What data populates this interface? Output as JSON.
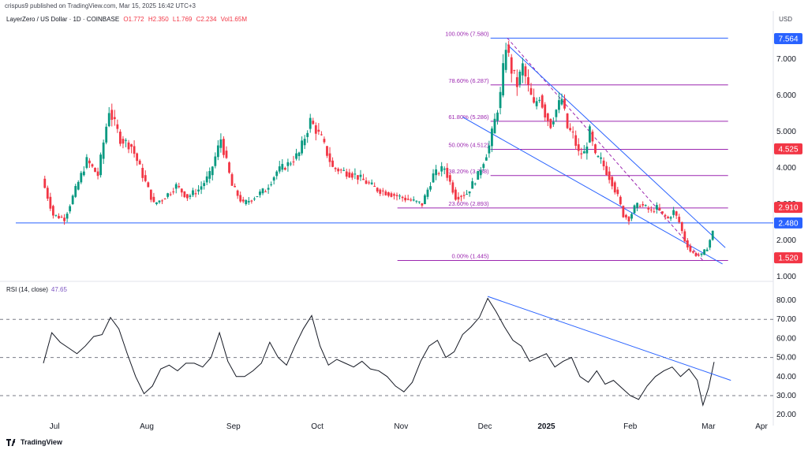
{
  "header": {
    "publisher": "crispus9 published on TradingView.com, Mar 15, 2025 16:42 UTC+3",
    "symbol": "LayerZero / US Dollar · 1D · COINBASE",
    "ohlc": {
      "o": "O1.772",
      "h": "H2.350",
      "l": "L1.769",
      "c": "C2.234",
      "vol": "Vol1.65M"
    },
    "currency": "USD"
  },
  "rsi_label": {
    "name": "RSI (14, close)",
    "value": "47.65"
  },
  "footer": {
    "brand": "TradingView"
  },
  "colors": {
    "up": "#089981",
    "down": "#f23645",
    "trend": "#2962ff",
    "fib": "#9c27b0",
    "rsi": "#131722",
    "rsi_band": "#787b86"
  },
  "chart_data": [
    {
      "type": "candlestick",
      "title": "LayerZero / US Dollar",
      "timeframe": "1D",
      "x_ticks": [
        "Jul",
        "Aug",
        "Sep",
        "Oct",
        "Nov",
        "Dec",
        "2025",
        "Feb",
        "Mar",
        "Apr"
      ],
      "y_ticks": [
        "7.000",
        "6.000",
        "5.000",
        "4.000",
        "3.000",
        "2.000",
        "1.000"
      ],
      "price_labels": [
        {
          "label": "7.564",
          "value": 7.564,
          "color": "#2962ff"
        },
        {
          "label": "4.525",
          "value": 4.525,
          "color": "#f23645"
        },
        {
          "label": "2.910",
          "value": 2.91,
          "color": "#f23645"
        },
        {
          "label": "2.480",
          "value": 2.48,
          "color": "#2962ff"
        },
        {
          "label": "1.520",
          "value": 1.52,
          "color": "#f23645"
        }
      ],
      "fib_levels": [
        {
          "label": "100.00% (7.580)",
          "value": 7.58
        },
        {
          "label": "78.60% (6.287)",
          "value": 6.287
        },
        {
          "label": "61.80% (5.286)",
          "value": 5.286
        },
        {
          "label": "50.00% (4.512)",
          "value": 4.512
        },
        {
          "label": "38.20% (3.788)",
          "value": 3.788
        },
        {
          "label": "23.60% (2.893)",
          "value": 2.893
        },
        {
          "label": "0.00% (1.445)",
          "value": 1.445
        }
      ],
      "horizontal_support": 2.48,
      "descending_channel": {
        "upper_from": 7.4,
        "upper_to": 1.8,
        "lower_from": 5.4,
        "lower_to": 1.35
      },
      "price_path": [
        [
          0,
          3.7
        ],
        [
          4,
          2.7
        ],
        [
          8,
          2.6
        ],
        [
          12,
          3.4
        ],
        [
          16,
          4.2
        ],
        [
          20,
          3.8
        ],
        [
          24,
          5.6
        ],
        [
          28,
          4.8
        ],
        [
          32,
          4.6
        ],
        [
          36,
          3.8
        ],
        [
          40,
          3.0
        ],
        [
          44,
          3.2
        ],
        [
          48,
          3.5
        ],
        [
          52,
          3.2
        ],
        [
          56,
          3.4
        ],
        [
          60,
          3.8
        ],
        [
          64,
          4.8
        ],
        [
          68,
          3.5
        ],
        [
          72,
          3.0
        ],
        [
          76,
          3.2
        ],
        [
          80,
          3.4
        ],
        [
          84,
          3.9
        ],
        [
          88,
          4.1
        ],
        [
          92,
          4.4
        ],
        [
          96,
          5.3
        ],
        [
          100,
          4.8
        ],
        [
          104,
          4.0
        ],
        [
          108,
          3.9
        ],
        [
          112,
          3.8
        ],
        [
          116,
          3.6
        ],
        [
          120,
          3.4
        ],
        [
          124,
          3.3
        ],
        [
          128,
          3.2
        ],
        [
          132,
          3.1
        ],
        [
          136,
          3.0
        ],
        [
          140,
          3.8
        ],
        [
          144,
          4.0
        ],
        [
          148,
          3.2
        ],
        [
          152,
          3.3
        ],
        [
          156,
          3.8
        ],
        [
          160,
          4.6
        ],
        [
          162,
          5.3
        ],
        [
          164,
          6.0
        ],
        [
          166,
          7.4
        ],
        [
          168,
          6.7
        ],
        [
          170,
          6.3
        ],
        [
          172,
          6.8
        ],
        [
          174,
          6.2
        ],
        [
          176,
          5.7
        ],
        [
          178,
          6.0
        ],
        [
          180,
          5.5
        ],
        [
          182,
          5.2
        ],
        [
          184,
          5.6
        ],
        [
          186,
          5.9
        ],
        [
          188,
          5.1
        ],
        [
          190,
          4.9
        ],
        [
          192,
          4.4
        ],
        [
          194,
          4.4
        ],
        [
          196,
          5.0
        ],
        [
          198,
          4.3
        ],
        [
          200,
          4.2
        ],
        [
          202,
          3.9
        ],
        [
          204,
          3.6
        ],
        [
          206,
          3.2
        ],
        [
          208,
          2.7
        ],
        [
          210,
          2.6
        ],
        [
          212,
          2.9
        ],
        [
          214,
          3.0
        ],
        [
          216,
          2.9
        ],
        [
          218,
          2.8
        ],
        [
          220,
          2.9
        ],
        [
          222,
          2.7
        ],
        [
          224,
          2.6
        ],
        [
          226,
          2.8
        ],
        [
          228,
          2.5
        ],
        [
          230,
          2.0
        ],
        [
          232,
          1.7
        ],
        [
          234,
          1.6
        ],
        [
          236,
          1.6
        ],
        [
          238,
          1.8
        ],
        [
          240,
          2.23
        ]
      ]
    },
    {
      "type": "line",
      "title": "RSI (14, close)",
      "y_ticks": [
        "80.00",
        "70.00",
        "60.00",
        "50.00",
        "40.00",
        "30.00",
        "20.00"
      ],
      "bands": [
        70,
        50,
        30
      ],
      "last_value": 47.65,
      "values": [
        [
          0,
          47
        ],
        [
          3,
          63
        ],
        [
          6,
          58
        ],
        [
          9,
          55
        ],
        [
          12,
          52
        ],
        [
          15,
          56
        ],
        [
          18,
          61
        ],
        [
          21,
          62
        ],
        [
          24,
          71
        ],
        [
          27,
          65
        ],
        [
          30,
          52
        ],
        [
          33,
          40
        ],
        [
          36,
          31
        ],
        [
          39,
          35
        ],
        [
          42,
          44
        ],
        [
          45,
          46
        ],
        [
          48,
          43
        ],
        [
          51,
          47
        ],
        [
          54,
          47
        ],
        [
          57,
          45
        ],
        [
          60,
          50
        ],
        [
          63,
          63
        ],
        [
          66,
          48
        ],
        [
          69,
          40
        ],
        [
          72,
          40
        ],
        [
          75,
          43
        ],
        [
          78,
          47
        ],
        [
          81,
          58
        ],
        [
          84,
          50
        ],
        [
          87,
          46
        ],
        [
          90,
          56
        ],
        [
          93,
          65
        ],
        [
          96,
          72
        ],
        [
          99,
          56
        ],
        [
          102,
          46
        ],
        [
          105,
          49
        ],
        [
          108,
          47
        ],
        [
          111,
          45
        ],
        [
          114,
          48
        ],
        [
          117,
          44
        ],
        [
          120,
          43
        ],
        [
          123,
          40
        ],
        [
          126,
          35
        ],
        [
          129,
          32
        ],
        [
          132,
          37
        ],
        [
          135,
          48
        ],
        [
          138,
          56
        ],
        [
          141,
          59
        ],
        [
          144,
          50
        ],
        [
          147,
          53
        ],
        [
          150,
          62
        ],
        [
          153,
          66
        ],
        [
          156,
          71
        ],
        [
          159,
          81
        ],
        [
          162,
          74
        ],
        [
          165,
          66
        ],
        [
          168,
          59
        ],
        [
          171,
          56
        ],
        [
          174,
          48
        ],
        [
          177,
          50
        ],
        [
          180,
          52
        ],
        [
          183,
          45
        ],
        [
          186,
          48
        ],
        [
          189,
          50
        ],
        [
          192,
          40
        ],
        [
          195,
          37
        ],
        [
          198,
          43
        ],
        [
          201,
          36
        ],
        [
          204,
          38
        ],
        [
          207,
          34
        ],
        [
          210,
          30
        ],
        [
          213,
          28
        ],
        [
          216,
          35
        ],
        [
          219,
          40
        ],
        [
          222,
          43
        ],
        [
          225,
          45
        ],
        [
          228,
          40
        ],
        [
          231,
          44
        ],
        [
          234,
          38
        ],
        [
          236,
          25
        ],
        [
          238,
          34
        ],
        [
          240,
          47.65
        ]
      ],
      "trendline": {
        "from": 82,
        "to": 38
      }
    }
  ]
}
